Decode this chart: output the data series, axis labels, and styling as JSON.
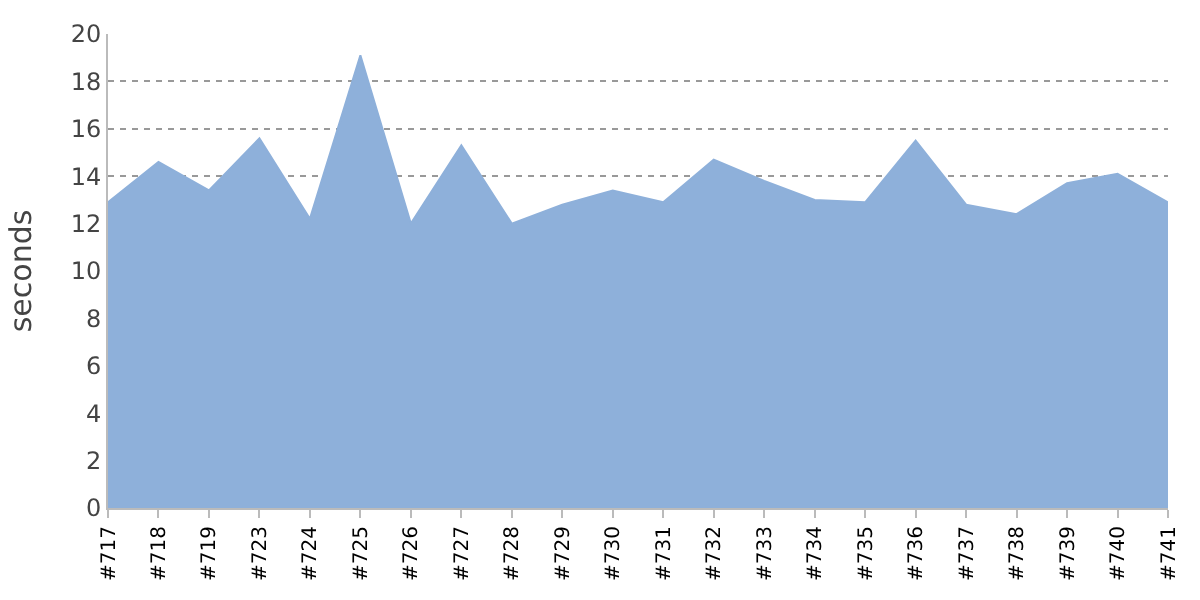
{
  "chart_data": {
    "type": "area",
    "ylabel": "seconds",
    "categories": [
      "#717",
      "#718",
      "#719",
      "#723",
      "#724",
      "#725",
      "#726",
      "#727",
      "#728",
      "#729",
      "#730",
      "#731",
      "#732",
      "#733",
      "#734",
      "#735",
      "#736",
      "#737",
      "#738",
      "#739",
      "#740",
      "#741"
    ],
    "values": [
      12.9,
      14.6,
      13.4,
      15.6,
      12.2,
      19.1,
      12.0,
      15.3,
      12.0,
      12.8,
      13.4,
      12.9,
      14.7,
      13.8,
      13.0,
      12.9,
      15.5,
      12.8,
      12.4,
      13.7,
      14.1,
      12.9
    ],
    "color": "#8eb0da",
    "ylim": [
      0,
      20
    ],
    "yticks": [
      0,
      2,
      4,
      6,
      8,
      10,
      12,
      14,
      16,
      18,
      20
    ],
    "grid": "y"
  }
}
